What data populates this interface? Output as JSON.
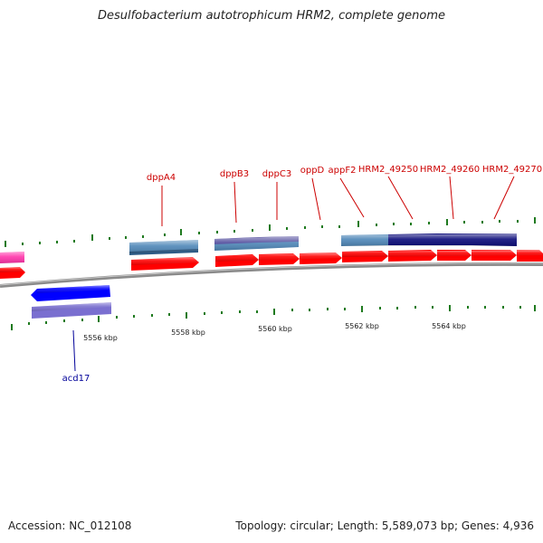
{
  "title": "Desulfobacterium autotrophicum HRM2, complete genome",
  "footer": {
    "accession": "Accession: NC_012108",
    "summary": "Topology: circular; Length: 5,589,073 bp; Genes: 4,936"
  },
  "colors": {
    "cds_forward": "#ff0000",
    "cds_reverse": "#0000ff",
    "label_forward": "#cc0000",
    "label_reverse": "#000099",
    "magenta": "#ff33aa",
    "steel_blue": "#4f87b8",
    "navy": "#0b0b7a",
    "slate": "#4f4a9c",
    "lavender": "#7a6fd0",
    "tick_green": "#1f7a1f",
    "backbone": "#8a8a8a"
  },
  "scale": {
    "unit": "kbp",
    "labels": [
      {
        "text": "5556 kbp"
      },
      {
        "text": "5558 kbp"
      },
      {
        "text": "5560 kbp"
      },
      {
        "text": "5562 kbp"
      },
      {
        "text": "5564 kbp"
      }
    ]
  },
  "genes_forward": [
    {
      "name": "dppA4"
    },
    {
      "name": "dppB3"
    },
    {
      "name": "dppC3"
    },
    {
      "name": "oppD"
    },
    {
      "name": "appF2"
    },
    {
      "name": "HRM2_49250"
    },
    {
      "name": "HRM2_49260"
    },
    {
      "name": "HRM2_49270"
    }
  ],
  "genes_reverse": [
    {
      "name": "acd17"
    }
  ]
}
